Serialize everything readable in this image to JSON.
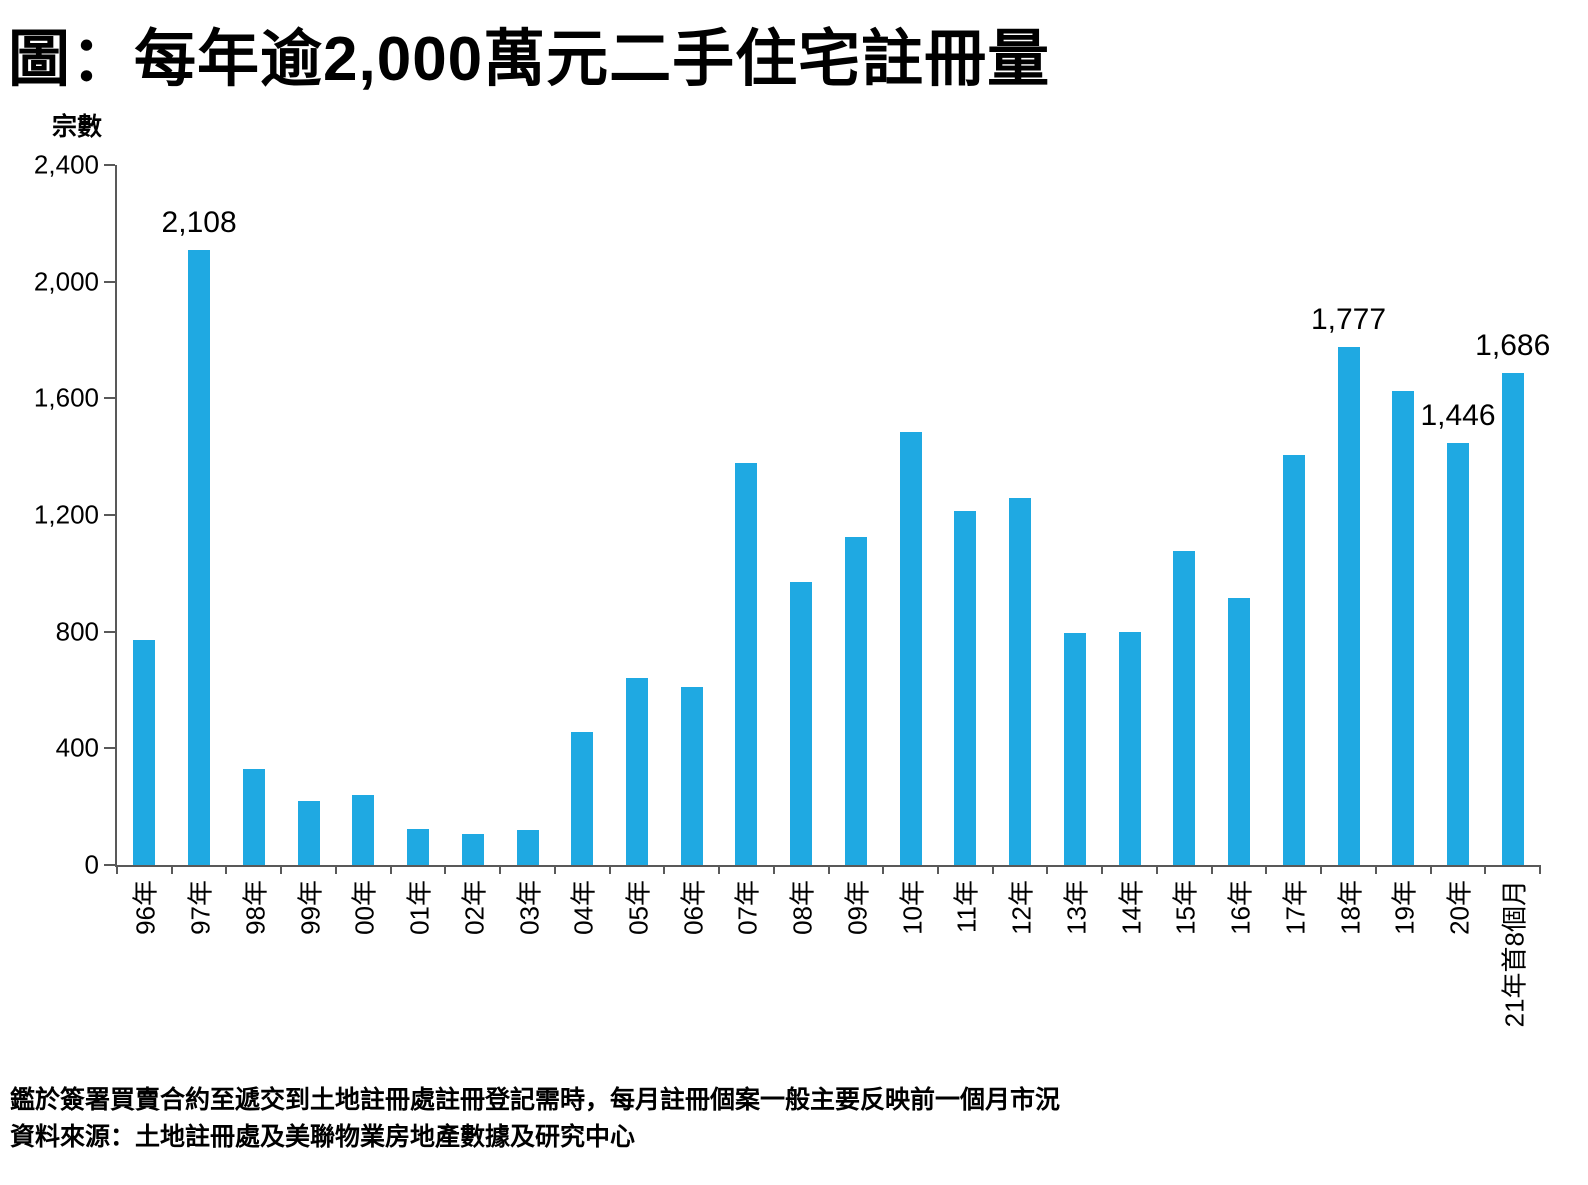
{
  "title": "圖：每年逾2,000萬元二手住宅註冊量",
  "y_axis_label": "宗數",
  "footnotes": {
    "note": "鑑於簽署買賣合約至遞交到土地註冊處註冊登記需時，每月註冊個案一般主要反映前一個月市況",
    "source": "資料來源：土地註冊處及美聯物業房地產數據及研究中心"
  },
  "colors": {
    "bar": "#1FA9E2",
    "axis": "#595959",
    "text": "#000000"
  },
  "chart_data": {
    "type": "bar",
    "title": "圖：每年逾2,000萬元二手住宅註冊量",
    "xlabel": "",
    "ylabel": "宗數",
    "ylim": [
      0,
      2400
    ],
    "ytick_interval": 400,
    "yticks_top_to_bottom": [
      "2,400",
      "2,000",
      "1,600",
      "1,200",
      "800",
      "400",
      "0"
    ],
    "grid": false,
    "legend": false,
    "bar_color": "#1FA9E2",
    "categories": [
      "96年",
      "97年",
      "98年",
      "99年",
      "00年",
      "01年",
      "02年",
      "03年",
      "04年",
      "05年",
      "06年",
      "07年",
      "08年",
      "09年",
      "10年",
      "11年",
      "12年",
      "13年",
      "14年",
      "15年",
      "16年",
      "17年",
      "18年",
      "19年",
      "20年",
      "21年首8個月"
    ],
    "values": [
      770,
      2108,
      330,
      220,
      240,
      125,
      105,
      120,
      455,
      640,
      610,
      1380,
      970,
      1125,
      1485,
      1215,
      1260,
      795,
      800,
      1075,
      915,
      1405,
      1777,
      1625,
      1446,
      1686
    ],
    "value_labels": {
      "97年": "2,108",
      "18年": "1,777",
      "20年": "1,446",
      "21年首8個月": "1,686"
    }
  }
}
